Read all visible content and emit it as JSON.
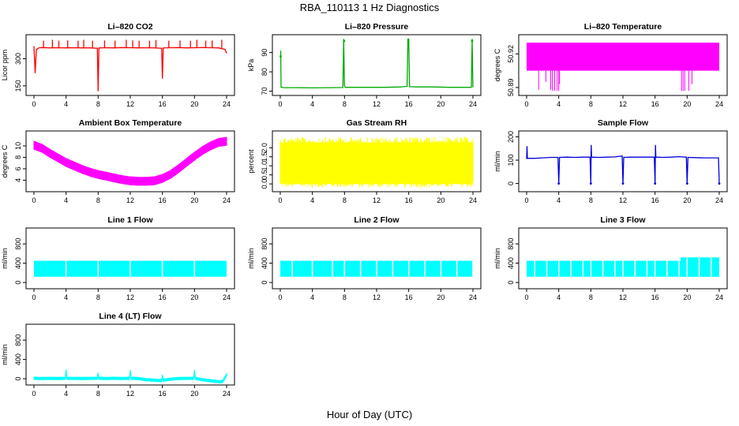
{
  "figure": {
    "title": "RBA_110113  1 Hz Diagnostics",
    "xlabel": "Hour of Day (UTC)"
  },
  "chart_data": [
    {
      "type": "line",
      "title": "Li–820 CO2",
      "ylabel": "Licor ppm",
      "color": "#ff0000",
      "xlim": [
        0,
        24
      ],
      "ylim": [
        110,
        420
      ],
      "xticks": [
        "0",
        "4",
        "8",
        "12",
        "16",
        "20",
        "24"
      ],
      "yticks": [
        {
          "v": 150,
          "label": "150"
        },
        {
          "v": 300,
          "label": "300"
        }
      ],
      "x": [
        0,
        0.15,
        0.3,
        0.6,
        1,
        2,
        3,
        4,
        5,
        6,
        7,
        7.9,
        8,
        8.1,
        9,
        10,
        11,
        12,
        13,
        14,
        15,
        15.9,
        16,
        16.1,
        17,
        18,
        19,
        20,
        21,
        22,
        23,
        23.8,
        24
      ],
      "y": [
        370,
        220,
        350,
        360,
        362,
        360,
        361,
        360,
        361,
        360,
        360,
        358,
        120,
        360,
        361,
        360,
        362,
        361,
        360,
        361,
        360,
        358,
        190,
        360,
        361,
        362,
        360,
        361,
        362,
        361,
        360,
        352,
        330
      ],
      "spikes": {
        "x": [
          1.2,
          2.3,
          3.1,
          4.2,
          5.5,
          6.2,
          7.3,
          8.8,
          10.1,
          11.5,
          12.3,
          13.1,
          14.4,
          15.2,
          16.8,
          18.2,
          19.5,
          20.3,
          21.4,
          22.2,
          23.4
        ],
        "y": [
          400,
          405,
          400,
          402,
          400,
          405,
          400,
          401,
          400,
          405,
          402,
          400,
          400,
          404,
          400,
          401,
          400,
          405,
          400,
          401,
          405
        ]
      }
    },
    {
      "type": "line",
      "title": "Li–820 Pressure",
      "ylabel": "kPa",
      "color": "#00aa00",
      "xlim": [
        0,
        24
      ],
      "ylim": [
        69,
        98
      ],
      "xticks": [
        "0",
        "4",
        "8",
        "12",
        "16",
        "20",
        "24"
      ],
      "yticks": [
        {
          "v": 70,
          "label": "70"
        },
        {
          "v": 80,
          "label": "80"
        },
        {
          "v": 90,
          "label": "90"
        }
      ],
      "x": [
        0.05,
        0.05,
        0.1,
        0.5,
        2,
        4,
        6,
        7.8,
        7.9,
        8.0,
        8.1,
        9,
        11,
        13,
        15,
        15.8,
        15.9,
        16.0,
        16.1,
        17,
        19,
        21,
        23,
        23.8,
        23.9,
        24
      ],
      "y": [
        86,
        91,
        72,
        71.8,
        71.8,
        71.7,
        71.8,
        71.9,
        97,
        73,
        72,
        72,
        72,
        72,
        72.2,
        72.5,
        97,
        97,
        72.3,
        72.2,
        72.2,
        72,
        72,
        72,
        97,
        72
      ],
      "markers": [
        {
          "x": 0.05,
          "y": 88
        },
        {
          "x": 7.95,
          "y": 96
        },
        {
          "x": 15.95,
          "y": 96
        },
        {
          "x": 23.9,
          "y": 96
        }
      ]
    },
    {
      "type": "area",
      "title": "Li–820 Temperature",
      "ylabel": "degrees C",
      "color": "#ff00ff",
      "xlim": [
        0,
        24
      ],
      "ylim": [
        50.885,
        50.935
      ],
      "xticks": [
        "0",
        "4",
        "8",
        "12",
        "16",
        "20",
        "24"
      ],
      "yticks": [
        {
          "v": 50.89,
          "label": "50.89"
        },
        {
          "v": 50.92,
          "label": "50.92"
        }
      ],
      "band": {
        "x_start": 0,
        "x_end": 24,
        "y_low": 50.905,
        "y_high": 50.93
      },
      "drops": {
        "x": [
          1.5,
          2.4,
          3.0,
          3.2,
          3.5,
          3.8,
          4.0,
          4.1,
          19.3,
          19.5,
          19.7,
          20.2,
          20.6
        ],
        "y": [
          50.888,
          50.895,
          50.888,
          50.887,
          50.887,
          50.887,
          50.887,
          50.893,
          50.887,
          50.887,
          50.887,
          50.887,
          50.893
        ]
      }
    },
    {
      "type": "line",
      "title": "Ambient Box Temperature",
      "ylabel": "degrees C",
      "color": "#ff00ff",
      "xlim": [
        0,
        24
      ],
      "ylim": [
        2.4,
        12.2
      ],
      "xticks": [
        "0",
        "4",
        "8",
        "12",
        "16",
        "20",
        "24"
      ],
      "yticks": [
        {
          "v": 4,
          "label": "4"
        },
        {
          "v": 6,
          "label": "6"
        },
        {
          "v": 8,
          "label": "8"
        },
        {
          "v": 10,
          "label": "10"
        }
      ],
      "x": [
        0,
        1,
        2,
        3,
        4,
        5,
        6,
        7,
        8,
        9,
        10,
        11,
        12,
        13,
        14,
        15,
        16,
        17,
        18,
        19,
        20,
        21,
        22,
        23,
        24
      ],
      "y": [
        10.1,
        9.6,
        8.7,
        7.9,
        7.1,
        6.5,
        5.9,
        5.4,
        5.0,
        4.7,
        4.4,
        4.1,
        3.9,
        3.8,
        3.8,
        3.9,
        4.3,
        5.0,
        6.0,
        7.1,
        8.2,
        9.2,
        10.0,
        10.6,
        10.8
      ],
      "band_half_width": 0.7
    },
    {
      "type": "area",
      "title": "Gas Stream RH",
      "ylabel": "percent",
      "color": "#ffff00",
      "xlim": [
        0,
        24
      ],
      "ylim": [
        -0.3,
        2.8
      ],
      "xticks": [
        "0",
        "4",
        "8",
        "12",
        "16",
        "20",
        "24"
      ],
      "yticks": [
        {
          "v": 0,
          "label": "0.0"
        },
        {
          "v": 0.5,
          "label": "0.5"
        },
        {
          "v": 1,
          "label": "1.0"
        },
        {
          "v": 1.5,
          "label": "1.5"
        },
        {
          "v": 2,
          "label": "2.0"
        }
      ],
      "band": {
        "x_start": 0,
        "x_end": 24,
        "y_low": 0.0,
        "y_high": 2.3
      },
      "noise_range": [
        -0.2,
        2.6
      ]
    },
    {
      "type": "line",
      "title": "Sample Flow",
      "ylabel": "ml/min",
      "color": "#0000dd",
      "xlim": [
        0,
        24
      ],
      "ylim": [
        -25,
        215
      ],
      "xticks": [
        "0",
        "4",
        "8",
        "12",
        "16",
        "20",
        "24"
      ],
      "yticks": [
        {
          "v": 0,
          "label": "0"
        },
        {
          "v": 100,
          "label": "100"
        },
        {
          "v": 200,
          "label": "200"
        }
      ],
      "x": [
        0,
        0.05,
        0.1,
        1,
        2,
        3,
        3.9,
        4,
        4.1,
        5,
        6,
        7,
        7.9,
        8,
        8.05,
        8.1,
        9,
        10,
        11,
        11.9,
        12,
        12.1,
        13,
        14,
        15,
        15.9,
        16,
        16.05,
        16.1,
        17,
        18,
        19,
        19.9,
        20,
        20.1,
        21,
        22,
        23,
        23.9,
        24
      ],
      "y": [
        105,
        160,
        108,
        108,
        110,
        112,
        112,
        0,
        112,
        113,
        112,
        113,
        113,
        0,
        165,
        113,
        112,
        113,
        114,
        118,
        0,
        112,
        113,
        113,
        113,
        113,
        0,
        165,
        113,
        112,
        113,
        115,
        113,
        0,
        112,
        111,
        110,
        110,
        110,
        0
      ],
      "markers": [
        {
          "x": 4,
          "y": 0
        },
        {
          "x": 8,
          "y": 0
        },
        {
          "x": 12,
          "y": 0
        },
        {
          "x": 16,
          "y": 0
        },
        {
          "x": 20,
          "y": 0
        },
        {
          "x": 24,
          "y": 0
        }
      ]
    },
    {
      "type": "area",
      "title": "Line 1 Flow",
      "ylabel": "ml/min",
      "color": "#00ffff",
      "xlim": [
        0,
        24
      ],
      "ylim": [
        -80,
        1080
      ],
      "xticks": [
        "0",
        "4",
        "8",
        "12",
        "16",
        "20",
        "24"
      ],
      "yticks": [
        {
          "v": 0,
          "label": "0"
        },
        {
          "v": 400,
          "label": "400"
        },
        {
          "v": 800,
          "label": "800"
        }
      ],
      "band": {
        "x_start": 0,
        "x_end": 24,
        "y_low": 120,
        "y_high": 450
      },
      "gaps": [
        4,
        8,
        12,
        16,
        20
      ]
    },
    {
      "type": "area",
      "title": "Line 2 Flow",
      "ylabel": "ml/min",
      "color": "#00ffff",
      "xlim": [
        0,
        24
      ],
      "ylim": [
        -80,
        1080
      ],
      "xticks": [
        "0",
        "4",
        "8",
        "12",
        "16",
        "20",
        "24"
      ],
      "yticks": [
        {
          "v": 0,
          "label": "0"
        },
        {
          "v": 400,
          "label": "400"
        },
        {
          "v": 800,
          "label": "800"
        }
      ],
      "band": {
        "x_start": 0,
        "x_end": 24,
        "y_low": 120,
        "y_high": 450
      },
      "gaps": [
        1.5,
        4,
        6.5,
        8,
        10,
        12,
        14,
        16,
        18,
        20,
        22,
        24
      ]
    },
    {
      "type": "area",
      "title": "Line 3 Flow",
      "ylabel": "ml/min",
      "color": "#00ffff",
      "xlim": [
        0,
        24
      ],
      "ylim": [
        -80,
        1080
      ],
      "xticks": [
        "0",
        "4",
        "8",
        "12",
        "16",
        "20",
        "24"
      ],
      "yticks": [
        {
          "v": 0,
          "label": "0"
        },
        {
          "v": 400,
          "label": "400"
        },
        {
          "v": 800,
          "label": "800"
        }
      ],
      "band": {
        "x_start": 0,
        "x_end": 24,
        "y_low": 120,
        "y_high": 450
      },
      "band2": {
        "x_start": 19.2,
        "x_end": 24,
        "y_low": 120,
        "y_high": 520
      },
      "gaps": [
        1,
        2.5,
        4,
        5.5,
        7,
        8,
        9.5,
        11,
        12,
        13.5,
        15,
        16,
        17.5,
        19,
        20,
        21.5,
        23
      ]
    },
    {
      "type": "line",
      "title": "Line 4 (LT) Flow",
      "ylabel": "ml/min",
      "color": "#00ffff",
      "xlim": [
        0,
        24
      ],
      "ylim": [
        -80,
        1080
      ],
      "xticks": [
        "0",
        "4",
        "8",
        "12",
        "16",
        "20",
        "24"
      ],
      "yticks": [
        {
          "v": 0,
          "label": "0"
        },
        {
          "v": 400,
          "label": "400"
        },
        {
          "v": 800,
          "label": "800"
        }
      ],
      "x": [
        0,
        1,
        2,
        3,
        3.9,
        4,
        4.1,
        5,
        6,
        7,
        7.9,
        8,
        8.1,
        9,
        10,
        11,
        11.9,
        12,
        12.1,
        13,
        14,
        15,
        15.9,
        16,
        16.1,
        17,
        18,
        19,
        19.9,
        20,
        20.1,
        21,
        22,
        23,
        23.5,
        24
      ],
      "y": [
        10,
        5,
        8,
        5,
        10,
        170,
        10,
        8,
        5,
        8,
        10,
        100,
        10,
        5,
        10,
        5,
        10,
        160,
        10,
        5,
        -20,
        -30,
        -40,
        60,
        -30,
        -10,
        5,
        8,
        10,
        160,
        10,
        -20,
        -40,
        -60,
        -60,
        80
      ],
      "band_half_width": 25
    }
  ]
}
